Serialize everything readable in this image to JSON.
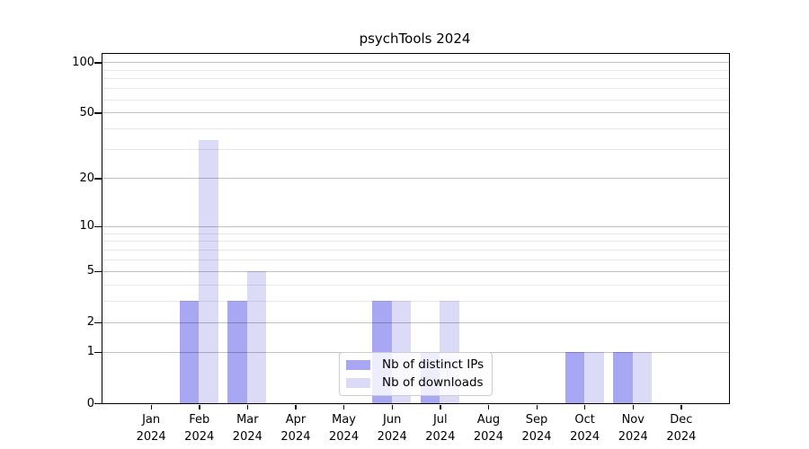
{
  "chart_data": {
    "type": "bar",
    "title": "psychTools 2024",
    "categories": [
      "Jan",
      "Feb",
      "Mar",
      "Apr",
      "May",
      "Jun",
      "Jul",
      "Aug",
      "Sep",
      "Oct",
      "Nov",
      "Dec"
    ],
    "x_year_label": "2024",
    "series": [
      {
        "name": "Nb of distinct IPs",
        "color": "#a7a7f4",
        "values": [
          0,
          3,
          3,
          0,
          0,
          3,
          1,
          0,
          0,
          1,
          1,
          0
        ]
      },
      {
        "name": "Nb of downloads",
        "color": "#dbdbf8",
        "values": [
          0,
          34,
          5,
          0,
          0,
          3,
          3,
          0,
          0,
          1,
          1,
          0
        ]
      }
    ],
    "xlabel": "",
    "ylabel": "",
    "scale": "log1p",
    "ylim": [
      0,
      112
    ],
    "yticks": [
      0,
      1,
      2,
      5,
      10,
      20,
      50,
      100
    ],
    "yticks_minor": [
      3,
      4,
      6,
      7,
      8,
      9,
      30,
      40,
      60,
      70,
      80,
      90
    ],
    "grid": true,
    "legend_position": "lower center",
    "colors": {
      "grid_major": "#c3c3c3",
      "grid_minor": "#e8e8e8",
      "axis": "#000000",
      "background": "#ffffff"
    }
  }
}
